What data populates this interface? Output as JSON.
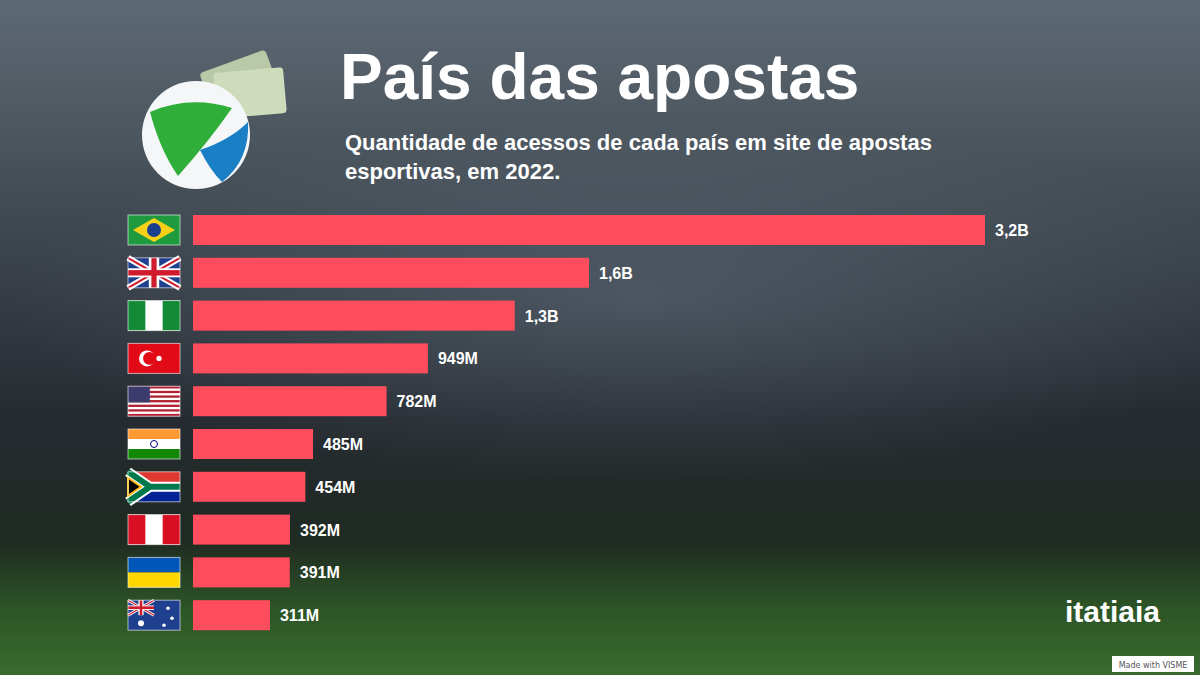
{
  "chart_data": {
    "type": "bar",
    "orientation": "horizontal",
    "title": "País das apostas",
    "subtitle": "Quantidade de acessos de cada país em site de apostas esportivas, em 2022.",
    "categories": [
      null,
      null,
      null,
      null,
      null,
      null,
      null,
      null,
      null,
      null
    ],
    "values": [
      3200,
      1600,
      1300,
      949,
      782,
      485,
      454,
      392,
      391,
      311
    ],
    "value_labels": [
      "3,2B",
      "1,6B",
      "1,3B",
      "949M",
      "782M",
      "485M",
      "454M",
      "392M",
      "391M",
      "311M"
    ],
    "color": "#ff4d5e",
    "xlim": [
      0,
      3200
    ],
    "data_labels": true,
    "tick_labels": false,
    "grid": false,
    "annotations": [
      "itatiaia",
      "Made with VISME"
    ]
  }
}
